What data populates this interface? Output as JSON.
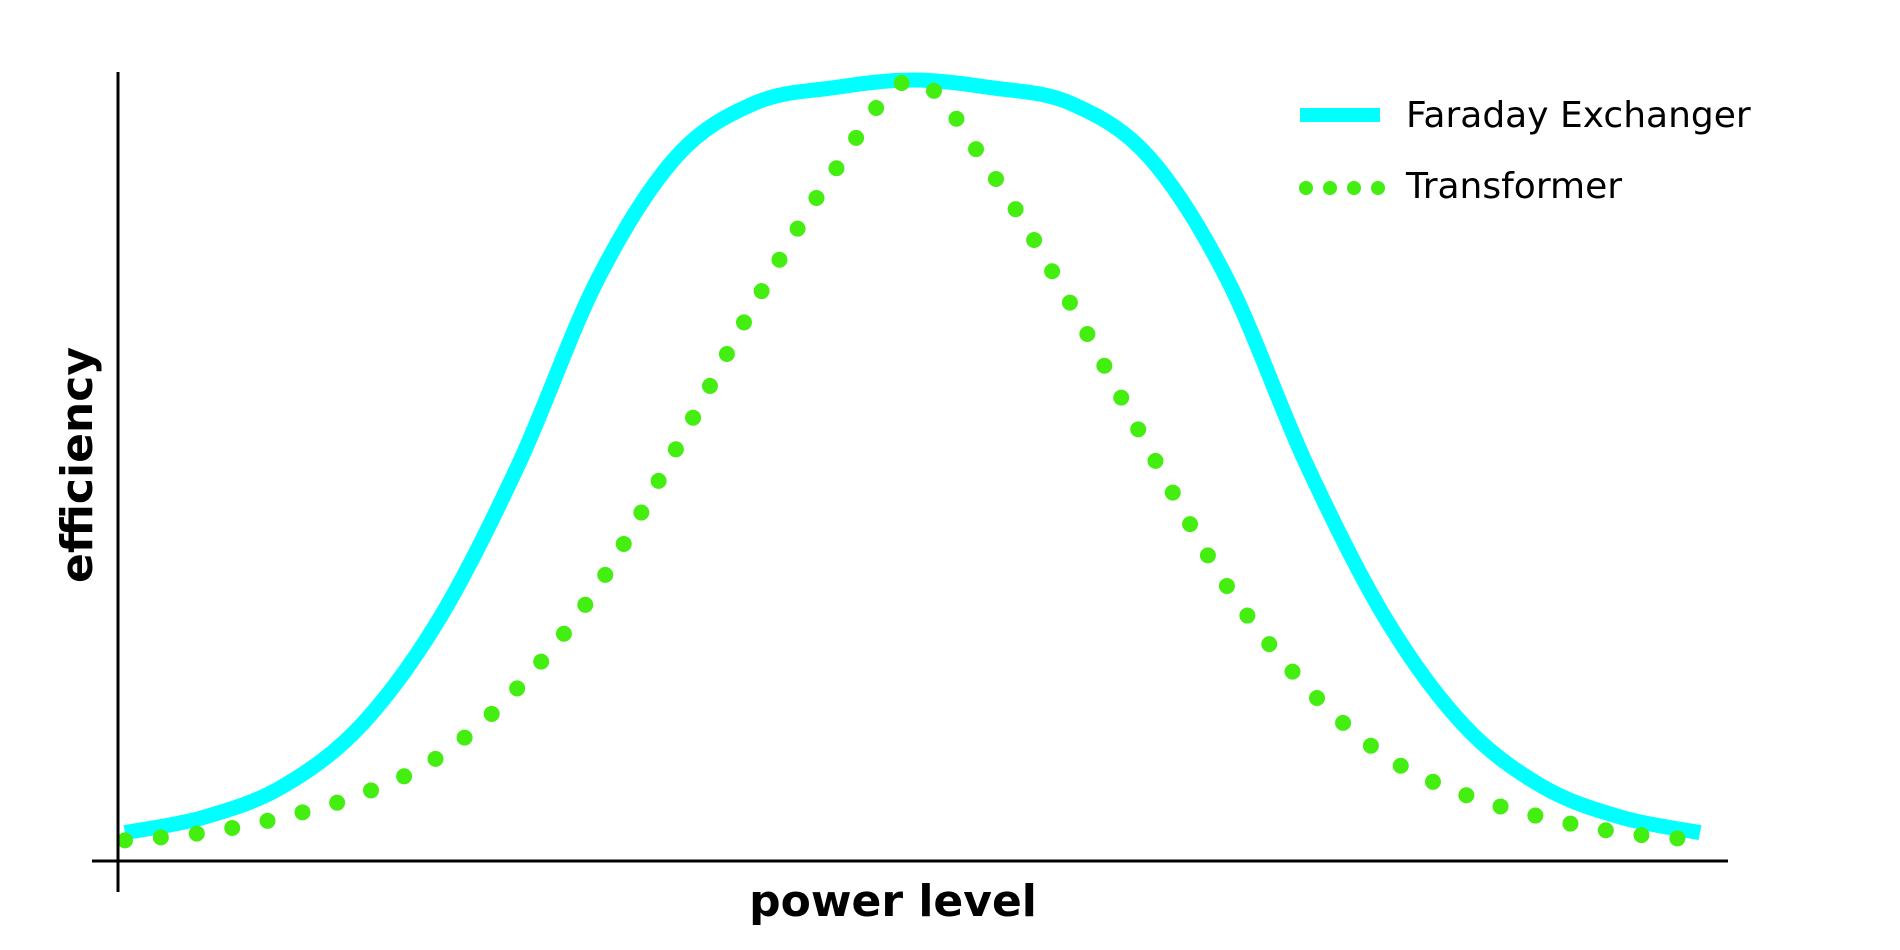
{
  "chart_data": {
    "type": "line",
    "title": "",
    "xlabel": "power level",
    "ylabel": "efficiency",
    "x_ticks_shown": false,
    "y_ticks_shown": false,
    "grid": false,
    "legend_position": "top-right",
    "xlim": [
      0,
      1
    ],
    "ylim": [
      0,
      1
    ],
    "x": [
      0.0,
      0.05,
      0.1,
      0.15,
      0.2,
      0.25,
      0.3,
      0.35,
      0.4,
      0.45,
      0.5,
      0.55,
      0.6,
      0.65,
      0.7,
      0.75,
      0.8,
      0.85,
      0.9,
      0.95,
      1.0
    ],
    "series": [
      {
        "name": "Faraday Exchanger",
        "style": "solid",
        "color": "#00FFFF",
        "values": [
          0.02,
          0.04,
          0.08,
          0.16,
          0.3,
          0.5,
          0.74,
          0.9,
          0.97,
          0.99,
          1.0,
          0.99,
          0.97,
          0.9,
          0.74,
          0.5,
          0.3,
          0.16,
          0.08,
          0.04,
          0.02
        ]
      },
      {
        "name": "Transformer",
        "style": "dotted",
        "color": "#44EE11",
        "values": [
          0.01,
          0.02,
          0.04,
          0.07,
          0.12,
          0.21,
          0.34,
          0.52,
          0.71,
          0.88,
          1.0,
          0.88,
          0.71,
          0.52,
          0.34,
          0.21,
          0.12,
          0.07,
          0.04,
          0.02,
          0.01
        ]
      }
    ]
  }
}
